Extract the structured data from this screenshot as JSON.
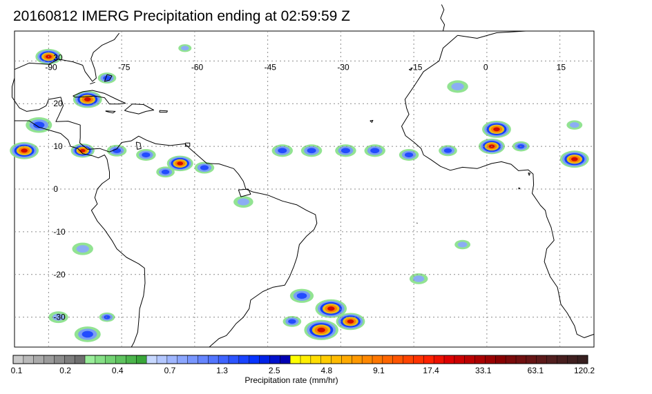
{
  "title": "20160812 IMERG Precipitation ending at 02:59:59 Z",
  "map": {
    "lon_range": [
      -97,
      22
    ],
    "lat_range": [
      -37,
      37
    ],
    "lon_labels": [
      {
        "text": "-90",
        "lon": -90
      },
      {
        "text": "-75",
        "lon": -75
      },
      {
        "text": "-60",
        "lon": -60
      },
      {
        "text": "-45",
        "lon": -45
      },
      {
        "text": "-30",
        "lon": -30
      },
      {
        "text": "-15",
        "lon": -15
      },
      {
        "text": "0",
        "lon": 0
      },
      {
        "text": "15",
        "lon": 15
      }
    ],
    "lat_labels": [
      {
        "text": "30",
        "lat": 30
      },
      {
        "text": "20",
        "lat": 20
      },
      {
        "text": "10",
        "lat": 10
      },
      {
        "text": "0",
        "lat": 0
      },
      {
        "text": "-10",
        "lat": -10
      },
      {
        "text": "-20",
        "lat": -20
      },
      {
        "text": "-30",
        "lat": -30
      }
    ]
  },
  "colorbar": {
    "label": "Precipitation rate (mm/hr)",
    "colors": [
      "#c9c9c9",
      "#b9b9b9",
      "#aaaaaa",
      "#9b9b9b",
      "#8c8c8c",
      "#7d7d7d",
      "#6e6e6e",
      "#9aee9a",
      "#86e086",
      "#72d272",
      "#5fc35f",
      "#4cb54c",
      "#39a639",
      "#c7d8ff",
      "#b3c7ff",
      "#9fb6ff",
      "#8ba6ff",
      "#7896ff",
      "#6585ff",
      "#5275ff",
      "#3f64ff",
      "#2c54ff",
      "#1943ff",
      "#0633ff",
      "#0022e6",
      "#0011cc",
      "#0000b3",
      "#ffff00",
      "#ffee00",
      "#ffdd00",
      "#ffcc00",
      "#ffbb00",
      "#ffaa00",
      "#ff9900",
      "#ff8800",
      "#ff7700",
      "#ff6600",
      "#ff5500",
      "#ff4400",
      "#ff3300",
      "#ff2200",
      "#ee1100",
      "#dd0000",
      "#cc0000",
      "#bb0000",
      "#aa0000",
      "#990000",
      "#880000",
      "#7a0a0a",
      "#701010",
      "#661515",
      "#5c1a1a",
      "#521f1f",
      "#481f1f",
      "#402020",
      "#382020"
    ],
    "tick_labels": [
      "0.1",
      "0.2",
      "0.4",
      "0.7",
      "1.3",
      "2.5",
      "4.8",
      "9.1",
      "17.4",
      "33.1",
      "63.1",
      "120.2"
    ]
  },
  "rain_cells": [
    {
      "lon": -90,
      "lat": 31,
      "r": 2.0,
      "level": "heavy"
    },
    {
      "lon": -82,
      "lat": 21,
      "r": 2.2,
      "level": "heavy"
    },
    {
      "lon": -92,
      "lat": 15,
      "r": 2.0,
      "level": "moderate"
    },
    {
      "lon": -95,
      "lat": 9,
      "r": 2.2,
      "level": "heavy"
    },
    {
      "lon": -83,
      "lat": 9,
      "r": 1.8,
      "level": "heavy"
    },
    {
      "lon": -76,
      "lat": 9,
      "r": 1.5,
      "level": "moderate"
    },
    {
      "lon": -70,
      "lat": 8,
      "r": 1.5,
      "level": "moderate"
    },
    {
      "lon": -63,
      "lat": 6,
      "r": 2.0,
      "level": "heavy"
    },
    {
      "lon": -66,
      "lat": 4,
      "r": 1.4,
      "level": "moderate"
    },
    {
      "lon": -58,
      "lat": 5,
      "r": 1.5,
      "level": "moderate"
    },
    {
      "lon": -50,
      "lat": -3,
      "r": 1.5,
      "level": "light"
    },
    {
      "lon": -42,
      "lat": 9,
      "r": 1.6,
      "level": "moderate"
    },
    {
      "lon": -36,
      "lat": 9,
      "r": 1.6,
      "level": "moderate"
    },
    {
      "lon": -29,
      "lat": 9,
      "r": 1.6,
      "level": "moderate"
    },
    {
      "lon": -23,
      "lat": 9,
      "r": 1.6,
      "level": "moderate"
    },
    {
      "lon": -16,
      "lat": 8,
      "r": 1.5,
      "level": "moderate"
    },
    {
      "lon": -8,
      "lat": 9,
      "r": 1.4,
      "level": "moderate"
    },
    {
      "lon": 2,
      "lat": 14,
      "r": 2.2,
      "level": "heavy"
    },
    {
      "lon": 1,
      "lat": 10,
      "r": 2.0,
      "level": "heavy"
    },
    {
      "lon": 7,
      "lat": 10,
      "r": 1.3,
      "level": "moderate"
    },
    {
      "lon": 18,
      "lat": 7,
      "r": 2.2,
      "level": "heavy"
    },
    {
      "lon": 18,
      "lat": 15,
      "r": 1.2,
      "level": "light"
    },
    {
      "lon": -6,
      "lat": 24,
      "r": 1.6,
      "level": "light"
    },
    {
      "lon": -32,
      "lat": -28,
      "r": 2.4,
      "level": "heavy"
    },
    {
      "lon": -28,
      "lat": -31,
      "r": 2.2,
      "level": "heavy"
    },
    {
      "lon": -34,
      "lat": -33,
      "r": 2.6,
      "level": "heavy"
    },
    {
      "lon": -38,
      "lat": -25,
      "r": 1.8,
      "level": "moderate"
    },
    {
      "lon": -40,
      "lat": -31,
      "r": 1.4,
      "level": "moderate"
    },
    {
      "lon": -88,
      "lat": -30,
      "r": 1.5,
      "level": "light"
    },
    {
      "lon": -82,
      "lat": -34,
      "r": 2.0,
      "level": "moderate"
    },
    {
      "lon": -78,
      "lat": -30,
      "r": 1.2,
      "level": "moderate"
    },
    {
      "lon": -83,
      "lat": -14,
      "r": 1.6,
      "level": "light"
    },
    {
      "lon": -5,
      "lat": -13,
      "r": 1.2,
      "level": "light"
    },
    {
      "lon": -14,
      "lat": -21,
      "r": 1.4,
      "level": "light"
    },
    {
      "lon": -62,
      "lat": 33,
      "r": 1.0,
      "level": "light"
    },
    {
      "lon": -78,
      "lat": 26,
      "r": 1.4,
      "level": "moderate"
    }
  ]
}
